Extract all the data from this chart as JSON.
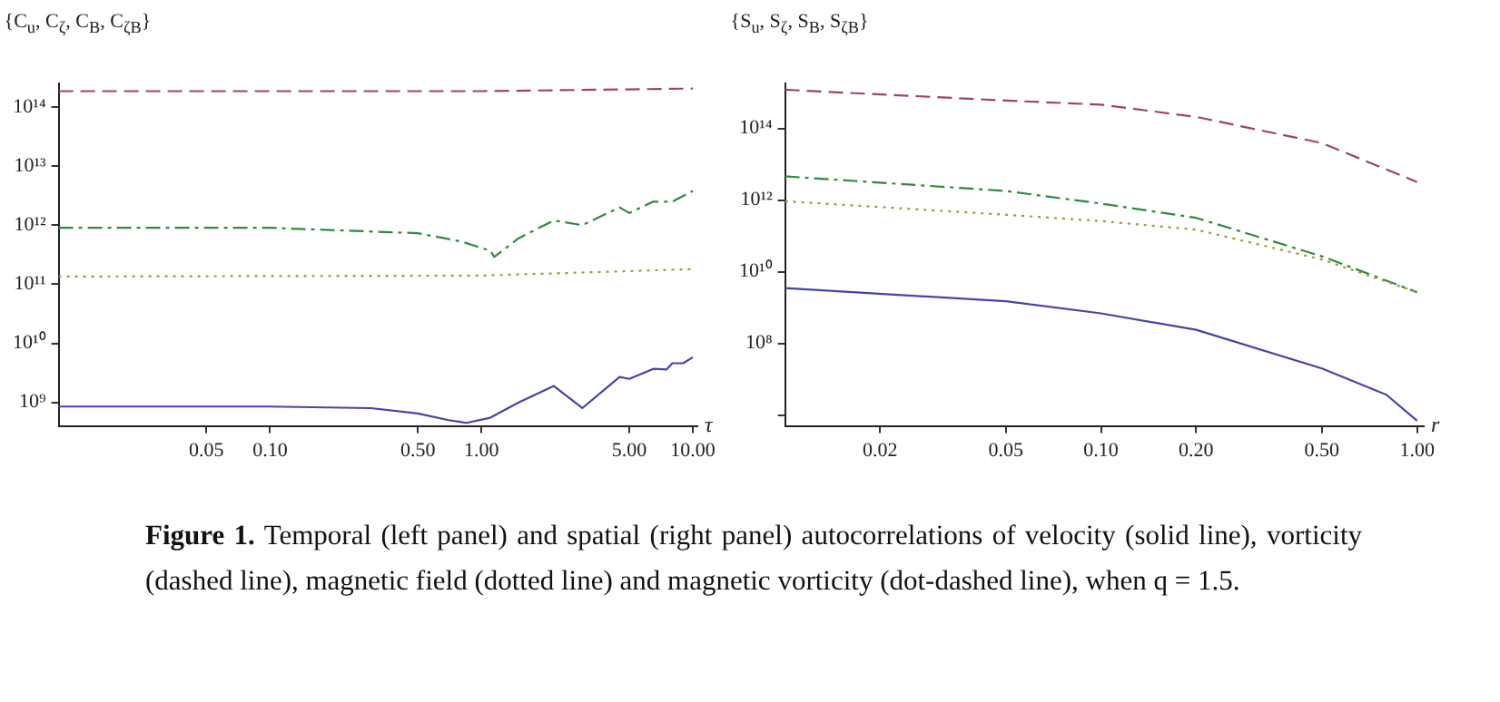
{
  "chart_data": [
    {
      "type": "line",
      "ylabel": "{C$_{u}$, C$_{ζ}$, C$_{B}$, C$_{ζB}$}",
      "xlabel": "τ",
      "log": "xy",
      "xlim": [
        0.01,
        10.5
      ],
      "ylim": [
        400000000.0,
        250000000000000.0
      ],
      "xticks": [
        {
          "value": 0.05,
          "label": "0.05"
        },
        {
          "value": 0.1,
          "label": "0.10"
        },
        {
          "value": 0.5,
          "label": "0.50"
        },
        {
          "value": 1,
          "label": "1.00"
        },
        {
          "value": 5,
          "label": "5.00"
        },
        {
          "value": 10,
          "label": "10.00"
        }
      ],
      "yticks": [
        {
          "value": 1000000000.0,
          "label": "10⁹"
        },
        {
          "value": 10000000000.0,
          "label": "10¹⁰"
        },
        {
          "value": 100000000000.0,
          "label": "10¹¹"
        },
        {
          "value": 1000000000000.0,
          "label": "10¹²"
        },
        {
          "value": 10000000000000.0,
          "label": "10¹³"
        },
        {
          "value": 100000000000000.0,
          "label": "10¹⁴"
        }
      ],
      "grid": false,
      "legend": false,
      "marker": "none",
      "series": [
        {
          "color": "#4444aa",
          "line_style": "solid",
          "x": [
            0.01,
            0.1,
            0.3,
            0.5,
            0.7,
            0.85,
            1.1,
            1.5,
            2.2,
            3,
            4.5,
            5,
            6.5,
            7.5,
            8,
            9,
            10
          ],
          "values": [
            850000000.0,
            850000000.0,
            800000000.0,
            650000000.0,
            500000000.0,
            450000000.0,
            550000000.0,
            1000000000.0,
            1900000000.0,
            800000000.0,
            2700000000.0,
            2500000000.0,
            3700000000.0,
            3600000000.0,
            4600000000.0,
            4600000000.0,
            5800000000.0
          ]
        },
        {
          "color": "#a04070",
          "line_style": "dashed",
          "x": [
            0.01,
            1,
            10
          ],
          "values": [
            185000000000000.0,
            185000000000000.0,
            205000000000000.0
          ]
        },
        {
          "color": "#a09838",
          "line_style": "dotted",
          "x": [
            0.01,
            1,
            10
          ],
          "values": [
            135000000000.0,
            140000000000.0,
            180000000000.0
          ]
        },
        {
          "color": "#2e8b3a",
          "line_style": "dashdot",
          "x": [
            0.01,
            0.1,
            0.5,
            0.8,
            1.1,
            1.15,
            1.5,
            2.2,
            3,
            4.5,
            5,
            6.5,
            8,
            10
          ],
          "values": [
            900000000000.0,
            900000000000.0,
            730000000000.0,
            530000000000.0,
            370000000000.0,
            290000000000.0,
            600000000000.0,
            1200000000000.0,
            1000000000000.0,
            2000000000000.0,
            1600000000000.0,
            2500000000000.0,
            2500000000000.0,
            3800000000000.0
          ]
        }
      ]
    },
    {
      "type": "line",
      "ylabel": "{S$_{u}$, S$_{ζ}$, S$_{B}$, S$_{ζB}$}",
      "xlabel": "r",
      "log": "xy",
      "xlim": [
        0.01,
        1.05
      ],
      "ylim": [
        500000.0,
        1800000000000000.0
      ],
      "xticks": [
        {
          "value": 0.02,
          "label": "0.02"
        },
        {
          "value": 0.05,
          "label": "0.05"
        },
        {
          "value": 0.1,
          "label": "0.10"
        },
        {
          "value": 0.2,
          "label": "0.20"
        },
        {
          "value": 0.5,
          "label": "0.50"
        },
        {
          "value": 1,
          "label": "1.00"
        }
      ],
      "yticks": [
        {
          "value": 1000000.0,
          "label": null
        },
        {
          "value": 100000000.0,
          "label": "10⁸"
        },
        {
          "value": 10000000000.0,
          "label": "10¹⁰"
        },
        {
          "value": 1000000000000.0,
          "label": "10¹²"
        },
        {
          "value": 100000000000000.0,
          "label": "10¹⁴"
        }
      ],
      "grid": false,
      "legend": false,
      "marker": "none",
      "annotations": [
        "Figure 1.",
        "Temporal (left panel) and spatial (right panel) autocorrelations of velocity (solid line), vorticity (dashed line), magnetic field (dotted line) and magnetic vorticity (dot-dashed line), when q = 1.5."
      ],
      "series": [
        {
          "color": "#4444aa",
          "line_style": "solid",
          "x": [
            0.01,
            0.05,
            0.1,
            0.2,
            0.5,
            0.8,
            1
          ],
          "values": [
            3500000000.0,
            1500000000.0,
            690000000.0,
            240000000.0,
            20000000.0,
            3700000.0,
            700000.0
          ]
        },
        {
          "color": "#a04070",
          "line_style": "dashed",
          "x": [
            0.01,
            0.05,
            0.1,
            0.2,
            0.5,
            1
          ],
          "values": [
            1200000000000000.0,
            600000000000000.0,
            460000000000000.0,
            210000000000000.0,
            39000000000000.0,
            3200000000000.0
          ]
        },
        {
          "color": "#a09838",
          "line_style": "dotted",
          "x": [
            0.01,
            0.05,
            0.1,
            0.2,
            0.5,
            1
          ],
          "values": [
            930000000000.0,
            390000000000.0,
            260000000000.0,
            150000000000.0,
            22000000000.0,
            2700000000.0
          ]
        },
        {
          "color": "#2e8b3a",
          "line_style": "dashdot",
          "x": [
            0.01,
            0.05,
            0.1,
            0.2,
            0.5,
            1
          ],
          "values": [
            4600000000000.0,
            1800000000000.0,
            800000000000.0,
            320000000000.0,
            27000000000.0,
            2700000000.0
          ]
        }
      ]
    }
  ]
}
